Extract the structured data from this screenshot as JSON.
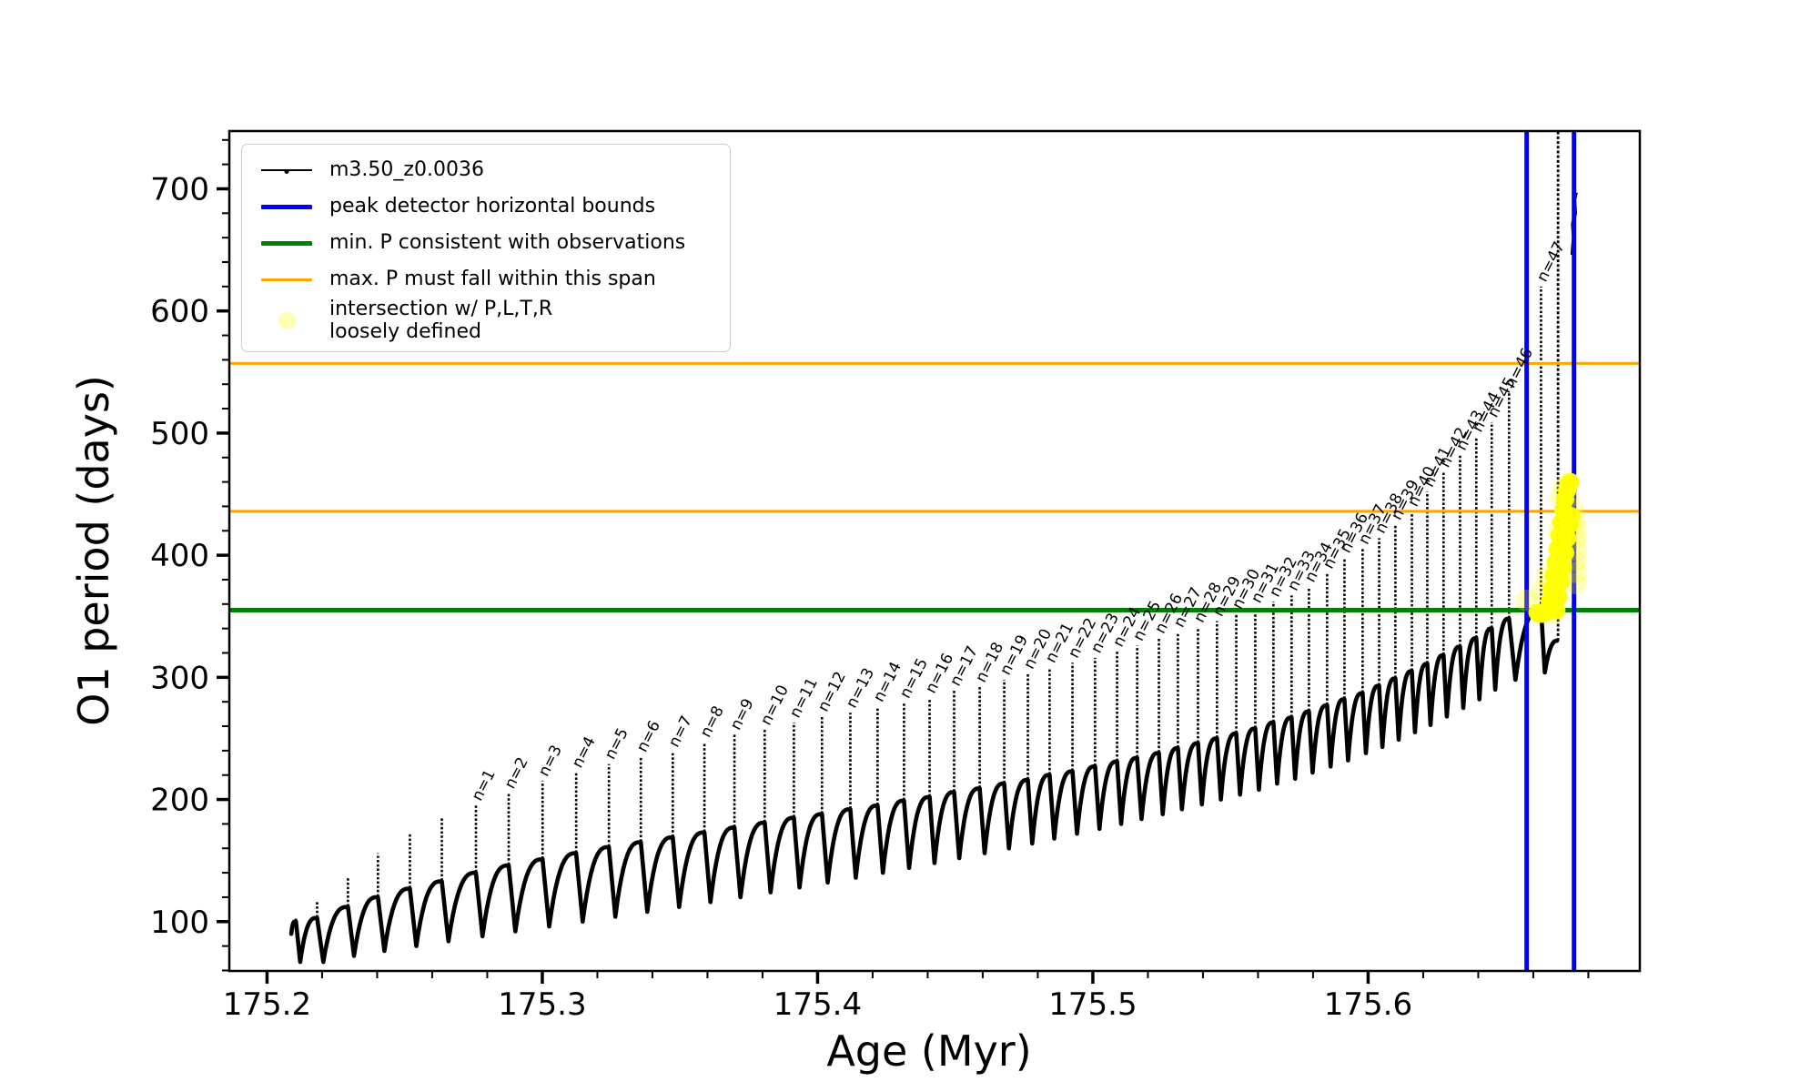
{
  "axes": {
    "xlabel": "Age (Myr)",
    "ylabel": "O1 period (days)"
  },
  "legend": {
    "entries": [
      {
        "label": "m3.50_z0.0036",
        "type": "line-dot",
        "color": "#000000",
        "thickness": 2
      },
      {
        "label": "peak detector horizontal bounds",
        "type": "thick-line",
        "color": "#0000ff",
        "thickness": 5
      },
      {
        "label": "min. P consistent with observations",
        "type": "thick-line",
        "color": "#008000",
        "thickness": 5
      },
      {
        "label": "max. P must fall within this span",
        "type": "line",
        "color": "#ffa500",
        "thickness": 3
      },
      {
        "label": "intersection w/ P,L,T,R\nloosely defined",
        "type": "circle",
        "color": "rgba(255,255,0,0.30)",
        "diameter": 19
      }
    ]
  },
  "chart_data": {
    "type": "line",
    "title": "",
    "xlabel": "Age (Myr)",
    "ylabel": "O1 period (days)",
    "xlim": [
      175.1863,
      175.6987
    ],
    "ylim": [
      59.6,
      747.3
    ],
    "grid": false,
    "legend_position": "upper left",
    "x_major_ticks": [
      175.2,
      175.3,
      175.4,
      175.5,
      175.6
    ],
    "x_minor_step": 0.02,
    "y_major_ticks": [
      100,
      200,
      300,
      400,
      500,
      600,
      700
    ],
    "y_minor_step": 20,
    "series_label": "m3.50_z0.0036",
    "series_color": "#000000",
    "start_point": {
      "age": 175.2088,
      "value": 90
    },
    "pulse_fields": [
      "n",
      "age",
      "peak",
      "base",
      "dip"
    ],
    "pulses": [
      [
        0,
        175.2105,
        104,
        100,
        67
      ],
      [
        0,
        175.2182,
        117,
        103,
        67
      ],
      [
        0,
        175.2294,
        137,
        112,
        72
      ],
      [
        0,
        175.2403,
        156,
        120,
        76
      ],
      [
        0,
        175.2519,
        172,
        127,
        80
      ],
      [
        0,
        175.2635,
        185,
        133,
        84
      ],
      [
        1,
        175.2759,
        195,
        140,
        88
      ],
      [
        2,
        175.2878,
        205,
        146,
        92
      ],
      [
        3,
        175.3001,
        215,
        151,
        96
      ],
      [
        4,
        175.3123,
        222,
        156,
        100
      ],
      [
        5,
        175.3242,
        229,
        161,
        104
      ],
      [
        6,
        175.3358,
        235,
        165,
        108
      ],
      [
        7,
        175.3474,
        239,
        169,
        112
      ],
      [
        8,
        175.3589,
        247,
        173,
        116
      ],
      [
        9,
        175.3698,
        253,
        177,
        120
      ],
      [
        10,
        175.3808,
        257,
        181,
        124
      ],
      [
        11,
        175.3914,
        263,
        185,
        128
      ],
      [
        12,
        175.4016,
        268,
        188,
        132
      ],
      [
        13,
        175.4119,
        271,
        192,
        136
      ],
      [
        14,
        175.4218,
        276,
        195,
        140
      ],
      [
        15,
        175.4314,
        279,
        199,
        144
      ],
      [
        16,
        175.4407,
        283,
        202,
        148
      ],
      [
        17,
        175.4496,
        289,
        206,
        152
      ],
      [
        18,
        175.4589,
        292,
        209,
        156
      ],
      [
        19,
        175.4678,
        298,
        213,
        160
      ],
      [
        20,
        175.4764,
        303,
        216,
        164
      ],
      [
        21,
        175.4843,
        308,
        220,
        168
      ],
      [
        22,
        175.4926,
        312,
        223,
        172
      ],
      [
        23,
        175.5008,
        316,
        227,
        176
      ],
      [
        24,
        175.5088,
        321,
        231,
        180
      ],
      [
        25,
        175.5161,
        326,
        234,
        184
      ],
      [
        26,
        175.524,
        332,
        238,
        188
      ],
      [
        27,
        175.5309,
        337,
        242,
        192
      ],
      [
        28,
        175.5382,
        341,
        246,
        196
      ],
      [
        29,
        175.5451,
        346,
        250,
        200
      ],
      [
        30,
        175.5521,
        352,
        254,
        204
      ],
      [
        31,
        175.559,
        357,
        258,
        208
      ],
      [
        32,
        175.5656,
        362,
        263,
        213
      ],
      [
        33,
        175.5722,
        367,
        267,
        217
      ],
      [
        34,
        175.5785,
        374,
        272,
        222
      ],
      [
        35,
        175.5851,
        385,
        277,
        227
      ],
      [
        36,
        175.5914,
        398,
        282,
        232
      ],
      [
        37,
        175.598,
        405,
        287,
        238
      ],
      [
        38,
        175.604,
        414,
        293,
        243
      ],
      [
        39,
        175.6099,
        425,
        299,
        249
      ],
      [
        40,
        175.6159,
        436,
        305,
        255
      ],
      [
        41,
        175.6215,
        452,
        311,
        261
      ],
      [
        42,
        175.6274,
        468,
        318,
        268
      ],
      [
        43,
        175.6334,
        482,
        325,
        275
      ],
      [
        44,
        175.6393,
        497,
        332,
        282
      ],
      [
        45,
        175.6449,
        509,
        340,
        290
      ],
      [
        46,
        175.6512,
        533,
        348,
        298
      ],
      [
        47,
        175.6628,
        620,
        356,
        304
      ]
    ],
    "end_rise": {
      "age": 175.669,
      "from_value": 330,
      "to_value": 747
    },
    "end_fragment": [
      [
        175.6742,
        646
      ],
      [
        175.6747,
        660
      ],
      [
        175.6744,
        671
      ],
      [
        175.6752,
        680
      ],
      [
        175.6749,
        691
      ],
      [
        175.6755,
        697
      ]
    ],
    "hlines": [
      {
        "value": 355,
        "color": "#008000",
        "width": 5,
        "label": "min. P consistent with observations"
      },
      {
        "value": 436,
        "color": "#ffa500",
        "width": 3,
        "label": "max. P must fall within this span"
      },
      {
        "value": 557,
        "color": "#ffa500",
        "width": 3,
        "label": "max. P must fall within this span"
      }
    ],
    "vlines": [
      {
        "age": 175.6576,
        "color": "#0000ff",
        "width": 5,
        "label": "peak detector horizontal bounds"
      },
      {
        "age": 175.6748,
        "color": "#0000ff",
        "width": 5,
        "label": "peak detector horizontal bounds"
      }
    ],
    "intersection_scatter": {
      "label": "intersection w/ P,L,T,R loosely defined",
      "color": "#ffff00",
      "solid_points": [
        [
          175.6615,
          353
        ],
        [
          175.6622,
          352
        ],
        [
          175.663,
          352
        ],
        [
          175.6638,
          353
        ],
        [
          175.6646,
          354
        ],
        [
          175.6654,
          356
        ],
        [
          175.6662,
          358
        ],
        [
          175.666,
          362
        ],
        [
          175.6667,
          372
        ],
        [
          175.6674,
          383
        ],
        [
          175.6681,
          394
        ],
        [
          175.6688,
          405
        ],
        [
          175.6695,
          416
        ],
        [
          175.6702,
          427
        ],
        [
          175.6709,
          437
        ],
        [
          175.6716,
          446
        ],
        [
          175.6723,
          453
        ],
        [
          175.6729,
          458
        ],
        [
          175.6734,
          460
        ],
        [
          175.6684,
          355
        ],
        [
          175.6692,
          366
        ],
        [
          175.67,
          378
        ],
        [
          175.6708,
          390
        ],
        [
          175.6716,
          402
        ],
        [
          175.6724,
          414
        ],
        [
          175.6732,
          425
        ],
        [
          175.6738,
          432
        ]
      ],
      "faint_points": [
        [
          175.6575,
          363
        ],
        [
          175.6628,
          370
        ],
        [
          175.6648,
          383
        ],
        [
          175.6668,
          352
        ],
        [
          175.6755,
          377
        ],
        [
          175.6757,
          386
        ],
        [
          175.6755,
          395
        ],
        [
          175.6757,
          404
        ],
        [
          175.6755,
          413
        ],
        [
          175.6757,
          421
        ],
        [
          175.6753,
          429
        ],
        [
          175.674,
          438
        ],
        [
          175.6727,
          447
        ],
        [
          175.6712,
          456
        ],
        [
          175.6698,
          447
        ],
        [
          175.669,
          420
        ]
      ]
    }
  }
}
